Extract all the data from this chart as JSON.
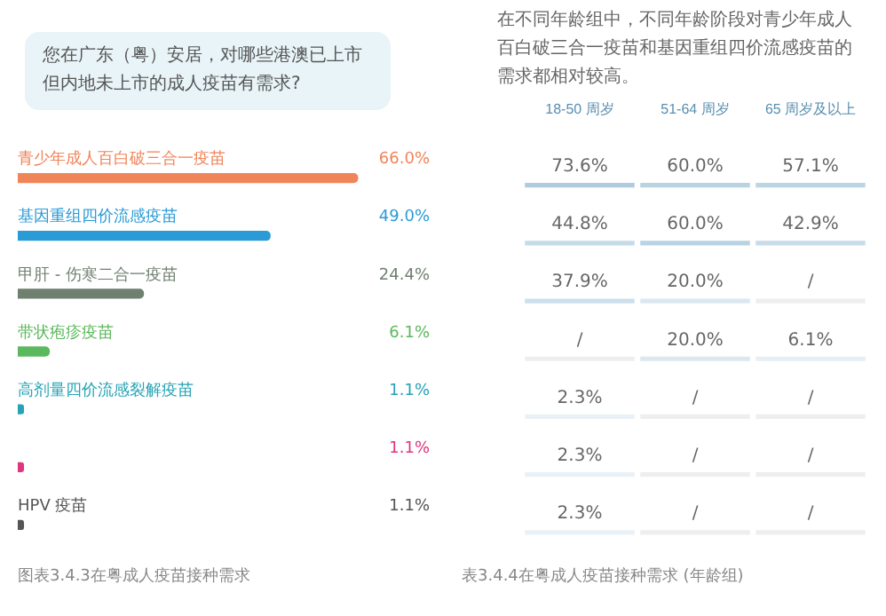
{
  "chart_data": [
    {
      "type": "bar",
      "orientation": "horizontal",
      "title": "您在广东（粤）安居，对哪些港澳已上市但内地未上市的成人疫苗有需求?",
      "categories": [
        "青少年成人百白破三合一疫苗",
        "基因重组四价流感疫苗",
        "甲肝 - 伤寒二合一疫苗",
        "带状疱疹疫苗",
        "高剂量四价流感裂解疫苗",
        null,
        "HPV 疫苗"
      ],
      "values": [
        66.0,
        49.0,
        24.4,
        6.1,
        1.1,
        1.1,
        1.1
      ],
      "value_labels": [
        "66.0%",
        "49.0%",
        "24.4%",
        "6.1%",
        "1.1%",
        "1.1%",
        "1.1%"
      ],
      "colors": [
        "#f0855a",
        "#2b9bd8",
        "#6f7f70",
        "#5cb85c",
        "#26a3b5",
        "#e0357f",
        "#555555"
      ],
      "tick_labels": false,
      "annotations": [
        "图表3.4.3在粤成人疫苗接种需求"
      ]
    },
    {
      "type": "heatmap",
      "title": "在不同年龄组中，不同年龄阶段对青少年成人百白破三合一疫苗和基因重组四价流感疫苗的需求都相对较高。",
      "categories": [
        "18-50 周岁",
        "51-64 周岁",
        "65 周岁及以上"
      ],
      "y_categories": [
        null,
        null,
        null,
        null,
        null,
        null,
        null
      ],
      "cells": [
        [
          73.6,
          60.0,
          57.1
        ],
        [
          44.8,
          60.0,
          42.9
        ],
        [
          37.9,
          20.0,
          null
        ],
        [
          null,
          20.0,
          6.1
        ],
        [
          2.3,
          null,
          null
        ],
        [
          2.3,
          null,
          null
        ],
        [
          2.3,
          null,
          null
        ]
      ],
      "cell_labels": [
        [
          "73.6%",
          "60.0%",
          "57.1%"
        ],
        [
          "44.8%",
          "60.0%",
          "42.9%"
        ],
        [
          "37.9%",
          "20.0%",
          "/"
        ],
        [
          "/",
          "20.0%",
          "6.1%"
        ],
        [
          "2.3%",
          "/",
          "/"
        ],
        [
          "2.3%",
          "/",
          "/"
        ],
        [
          "2.3%",
          "/",
          "/"
        ]
      ],
      "annotations": [
        "表3.4.4在粤成人疫苗接种需求 (年龄组)"
      ]
    }
  ]
}
